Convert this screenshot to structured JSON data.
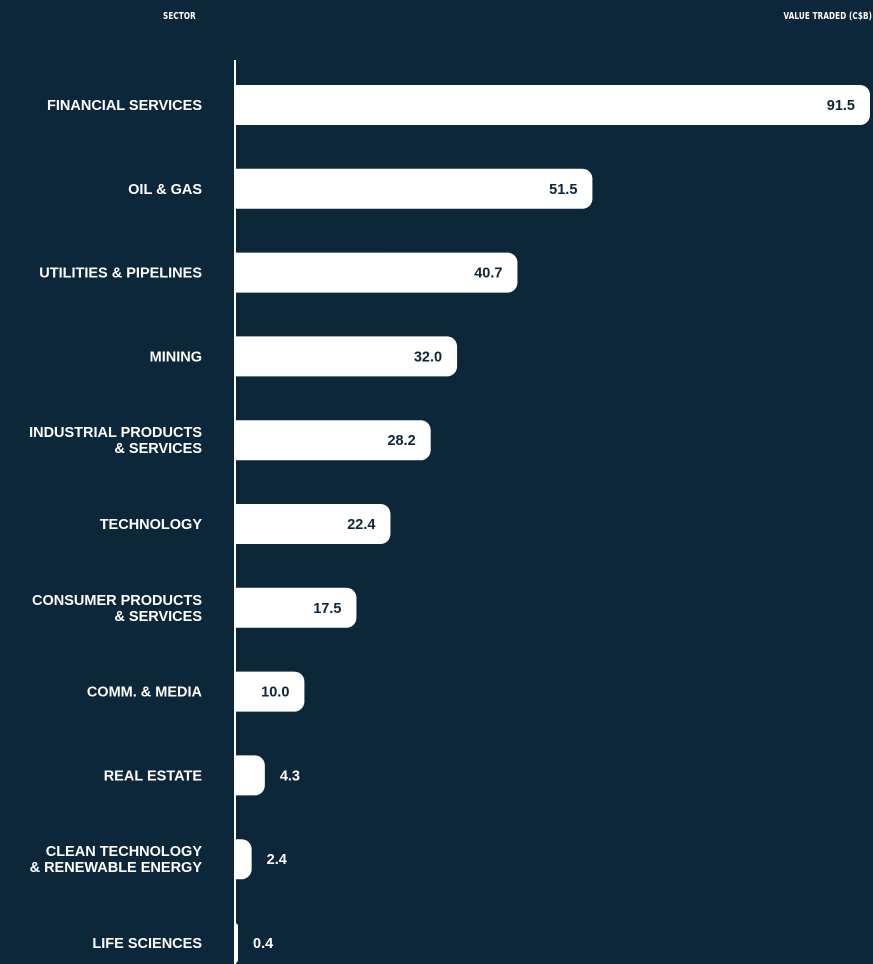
{
  "headers": {
    "sector": "SECTOR",
    "value": "VALUE TRADED (C$B)"
  },
  "colors": {
    "background": "#0c263a",
    "bar": "#ffffff",
    "label_on_bar": "#0c263a",
    "label_outside": "#ffffff",
    "axis_line": "#ffffff"
  },
  "chart_data": {
    "type": "bar",
    "orientation": "horizontal",
    "categories": [
      [
        "FINANCIAL SERVICES"
      ],
      [
        "OIL & GAS"
      ],
      [
        "UTILITIES & PIPELINES"
      ],
      [
        "MINING"
      ],
      [
        "INDUSTRIAL PRODUCTS",
        "& SERVICES"
      ],
      [
        "TECHNOLOGY"
      ],
      [
        "CONSUMER PRODUCTS",
        "& SERVICES"
      ],
      [
        "COMM. & MEDIA"
      ],
      [
        "REAL ESTATE"
      ],
      [
        "CLEAN TECHNOLOGY",
        "& RENEWABLE ENERGY"
      ],
      [
        "LIFE SCIENCES"
      ]
    ],
    "values": [
      91.5,
      51.5,
      40.7,
      32.0,
      28.2,
      22.4,
      17.5,
      10.0,
      4.3,
      2.4,
      0.4
    ],
    "value_labels": [
      "91.5",
      "51.5",
      "40.7",
      "32.0",
      "28.2",
      "22.4",
      "17.5",
      "10.0",
      "4.3",
      "2.4",
      "0.4"
    ],
    "xlabel": "VALUE TRADED (C$B)",
    "ylabel": "SECTOR",
    "xlim": [
      0,
      91.5
    ],
    "grid": false,
    "legend": "none"
  }
}
